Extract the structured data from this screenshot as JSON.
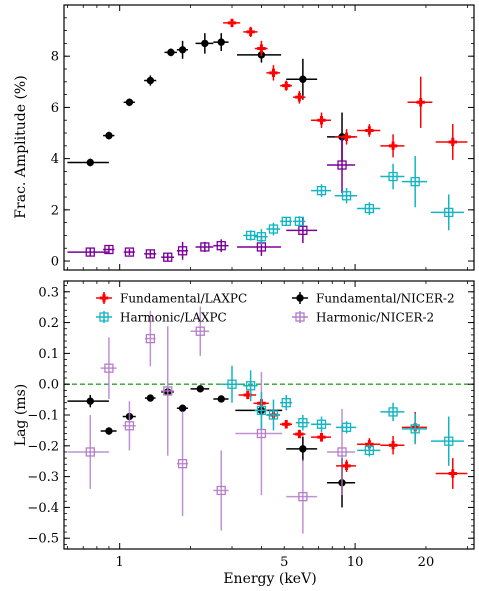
{
  "chart_data": [
    {
      "type": "scatter",
      "panel": "top",
      "ylabel": "Frac. Amplitude (%)",
      "xlabel": "",
      "xscale": "log",
      "xlim": [
        0.58,
        32
      ],
      "ylim": [
        -0.35,
        10
      ],
      "yticks": [
        "0",
        "2",
        "4",
        "6",
        "8"
      ],
      "yticks_values": [
        0,
        2,
        4,
        6,
        8
      ],
      "series": [
        {
          "name": "Fundamental/NICER-2",
          "color": "#000000",
          "marker": "circle",
          "points": [
            {
              "x": 0.75,
              "xerr": [
                0.15,
                0.15
              ],
              "y": 3.85,
              "yerr": 0.15
            },
            {
              "x": 0.9,
              "xerr": [
                0.05,
                0.05
              ],
              "y": 4.9,
              "yerr": 0.15
            },
            {
              "x": 1.1,
              "xerr": [
                0.06,
                0.06
              ],
              "y": 6.2,
              "yerr": 0.15
            },
            {
              "x": 1.35,
              "xerr": [
                0.08,
                0.08
              ],
              "y": 7.05,
              "yerr": 0.2
            },
            {
              "x": 1.65,
              "xerr": [
                0.1,
                0.1
              ],
              "y": 8.15,
              "yerr": 0.15
            },
            {
              "x": 1.85,
              "xerr": [
                0.1,
                0.1
              ],
              "y": 8.25,
              "yerr": 0.35
            },
            {
              "x": 2.3,
              "xerr": [
                0.2,
                0.2
              ],
              "y": 8.5,
              "yerr": 0.4
            },
            {
              "x": 2.7,
              "xerr": [
                0.2,
                0.2
              ],
              "y": 8.55,
              "yerr": 0.35
            },
            {
              "x": 4.0,
              "xerr": [
                0.85,
                0.85
              ],
              "y": 8.05,
              "yerr": 0.3
            },
            {
              "x": 6.0,
              "xerr": [
                0.9,
                0.9
              ],
              "y": 7.1,
              "yerr": 0.8
            },
            {
              "x": 8.8,
              "xerr": [
                1.2,
                1.2
              ],
              "y": 4.85,
              "yerr": 0.95
            }
          ]
        },
        {
          "name": "Harmonic/NICER-2",
          "color": "#7b0099",
          "marker": "square",
          "points": [
            {
              "x": 0.75,
              "xerr": [
                0.15,
                0.15
              ],
              "y": 0.35,
              "yerr": 0.15
            },
            {
              "x": 0.9,
              "xerr": [
                0.05,
                0.05
              ],
              "y": 0.45,
              "yerr": 0.15
            },
            {
              "x": 1.1,
              "xerr": [
                0.06,
                0.06
              ],
              "y": 0.35,
              "yerr": 0.12
            },
            {
              "x": 1.35,
              "xerr": [
                0.08,
                0.08
              ],
              "y": 0.28,
              "yerr": 0.15
            },
            {
              "x": 1.6,
              "xerr": [
                0.1,
                0.1
              ],
              "y": 0.15,
              "yerr": 0.15
            },
            {
              "x": 1.85,
              "xerr": [
                0.1,
                0.1
              ],
              "y": 0.4,
              "yerr": 0.35
            },
            {
              "x": 2.3,
              "xerr": [
                0.2,
                0.2
              ],
              "y": 0.55,
              "yerr": 0.2
            },
            {
              "x": 2.7,
              "xerr": [
                0.2,
                0.2
              ],
              "y": 0.6,
              "yerr": 0.25
            },
            {
              "x": 4.0,
              "xerr": [
                0.85,
                0.85
              ],
              "y": 0.55,
              "yerr": 0.35
            },
            {
              "x": 6.0,
              "xerr": [
                0.9,
                0.9
              ],
              "y": 1.2,
              "yerr": 0.5
            },
            {
              "x": 8.8,
              "xerr": [
                1.2,
                1.2
              ],
              "y": 3.75,
              "yerr": 1.1
            }
          ]
        },
        {
          "name": "Fundamental/LAXPC",
          "color": "#ff0000",
          "marker": "plus",
          "points": [
            {
              "x": 3.0,
              "xerr": [
                0.25,
                0.25
              ],
              "y": 9.3,
              "yerr": 0.15
            },
            {
              "x": 3.6,
              "xerr": [
                0.25,
                0.25
              ],
              "y": 8.95,
              "yerr": 0.2
            },
            {
              "x": 4.0,
              "xerr": [
                0.25,
                0.25
              ],
              "y": 8.3,
              "yerr": 0.3
            },
            {
              "x": 4.5,
              "xerr": [
                0.3,
                0.3
              ],
              "y": 7.35,
              "yerr": 0.3
            },
            {
              "x": 5.1,
              "xerr": [
                0.3,
                0.3
              ],
              "y": 6.85,
              "yerr": 0.2
            },
            {
              "x": 5.8,
              "xerr": [
                0.35,
                0.35
              ],
              "y": 6.4,
              "yerr": 0.25
            },
            {
              "x": 7.2,
              "xerr": [
                0.7,
                0.7
              ],
              "y": 5.5,
              "yerr": 0.3
            },
            {
              "x": 9.2,
              "xerr": [
                1.0,
                1.0
              ],
              "y": 4.85,
              "yerr": 0.3
            },
            {
              "x": 11.5,
              "xerr": [
                1.3,
                1.3
              ],
              "y": 5.1,
              "yerr": 0.25
            },
            {
              "x": 14.5,
              "xerr": [
                1.7,
                1.7
              ],
              "y": 4.5,
              "yerr": 0.45
            },
            {
              "x": 19.0,
              "xerr": [
                2.3,
                2.3
              ],
              "y": 6.2,
              "yerr": 1.0
            },
            {
              "x": 26.0,
              "xerr": [
                4.0,
                4.0
              ],
              "y": 4.65,
              "yerr": 0.7
            }
          ]
        },
        {
          "name": "Harmonic/LAXPC",
          "color": "#14b5c2",
          "marker": "square",
          "points": [
            {
              "x": 3.6,
              "xerr": [
                0.25,
                0.25
              ],
              "y": 1.0,
              "yerr": 0.2
            },
            {
              "x": 4.0,
              "xerr": [
                0.25,
                0.25
              ],
              "y": 0.95,
              "yerr": 0.3
            },
            {
              "x": 4.5,
              "xerr": [
                0.3,
                0.3
              ],
              "y": 1.25,
              "yerr": 0.25
            },
            {
              "x": 5.1,
              "xerr": [
                0.3,
                0.3
              ],
              "y": 1.55,
              "yerr": 0.15
            },
            {
              "x": 5.8,
              "xerr": [
                0.35,
                0.35
              ],
              "y": 1.55,
              "yerr": 0.2
            },
            {
              "x": 7.2,
              "xerr": [
                0.7,
                0.7
              ],
              "y": 2.75,
              "yerr": 0.25
            },
            {
              "x": 9.2,
              "xerr": [
                1.0,
                1.0
              ],
              "y": 2.55,
              "yerr": 0.3
            },
            {
              "x": 11.5,
              "xerr": [
                1.3,
                1.3
              ],
              "y": 2.05,
              "yerr": 0.25
            },
            {
              "x": 14.5,
              "xerr": [
                1.7,
                1.7
              ],
              "y": 3.3,
              "yerr": 0.5
            },
            {
              "x": 18.0,
              "xerr": [
                2.2,
                2.2
              ],
              "y": 3.1,
              "yerr": 1.0
            },
            {
              "x": 25.0,
              "xerr": [
                4.0,
                4.0
              ],
              "y": 1.9,
              "yerr": 0.7
            }
          ]
        }
      ]
    },
    {
      "type": "scatter",
      "panel": "bottom",
      "ylabel": "Lag (ms)",
      "xlabel": "Energy (keV)",
      "xscale": "log",
      "xlim": [
        0.58,
        32
      ],
      "ylim": [
        -0.535,
        0.335
      ],
      "yticks": [
        "0.3",
        "0.2",
        "0.1",
        "0.0",
        "−0.1",
        "−0.2",
        "−0.3",
        "−0.4",
        "−0.5"
      ],
      "yticks_values": [
        0.3,
        0.2,
        0.1,
        0.0,
        -0.1,
        -0.2,
        -0.3,
        -0.4,
        -0.5
      ],
      "xticks": [
        "1",
        "5",
        "10",
        "20"
      ],
      "xticks_values": [
        1,
        5,
        10,
        20
      ],
      "reference_line": {
        "y": 0.0,
        "color": "#2ca02c",
        "style": "dashed"
      },
      "legend": {
        "placement": "top",
        "entries": [
          "Fundamental/LAXPC",
          "Fundamental/NICER-2",
          "Harmonic/LAXPC",
          "Harmonic/NICER-2"
        ]
      },
      "series": [
        {
          "name": "Fundamental/NICER-2",
          "color": "#000000",
          "marker": "circle",
          "points": [
            {
              "x": 0.75,
              "xerr": [
                0.15,
                0.15
              ],
              "y": -0.055,
              "yerr": 0.02
            },
            {
              "x": 0.9,
              "xerr": [
                0.07,
                0.07
              ],
              "y": -0.152,
              "yerr": 0.012
            },
            {
              "x": 1.1,
              "xerr": [
                0.07,
                0.07
              ],
              "y": -0.105,
              "yerr": 0.012
            },
            {
              "x": 1.35,
              "xerr": [
                0.07,
                0.07
              ],
              "y": -0.045,
              "yerr": 0.008
            },
            {
              "x": 1.6,
              "xerr": [
                0.1,
                0.1
              ],
              "y": -0.025,
              "yerr": 0.008
            },
            {
              "x": 1.85,
              "xerr": [
                0.1,
                0.1
              ],
              "y": -0.078,
              "yerr": 0.01
            },
            {
              "x": 2.2,
              "xerr": [
                0.2,
                0.2
              ],
              "y": -0.015,
              "yerr": 0.01
            },
            {
              "x": 2.7,
              "xerr": [
                0.2,
                0.2
              ],
              "y": -0.048,
              "yerr": 0.01
            },
            {
              "x": 4.0,
              "xerr": [
                0.9,
                0.9
              ],
              "y": -0.085,
              "yerr": 0.02
            },
            {
              "x": 6.0,
              "xerr": [
                0.9,
                0.9
              ],
              "y": -0.21,
              "yerr": 0.04
            },
            {
              "x": 8.8,
              "xerr": [
                1.2,
                1.2
              ],
              "y": -0.32,
              "yerr": 0.08
            }
          ]
        },
        {
          "name": "Harmonic/NICER-2",
          "color": "#b57ec9",
          "marker": "square",
          "points": [
            {
              "x": 0.75,
              "xerr": [
                0.15,
                0.15
              ],
              "y": -0.22,
              "yerr": 0.12
            },
            {
              "x": 0.9,
              "xerr": [
                0.07,
                0.07
              ],
              "y": 0.052,
              "yerr": 0.1
            },
            {
              "x": 1.1,
              "xerr": [
                0.07,
                0.07
              ],
              "y": -0.135,
              "yerr": 0.08
            },
            {
              "x": 1.35,
              "xerr": [
                0.07,
                0.07
              ],
              "y": 0.148,
              "yerr": 0.09
            },
            {
              "x": 1.6,
              "xerr": [
                0.1,
                0.1
              ],
              "y": -0.022,
              "yerr": 0.21
            },
            {
              "x": 1.85,
              "xerr": [
                0.1,
                0.1
              ],
              "y": -0.258,
              "yerr": 0.17
            },
            {
              "x": 2.2,
              "xerr": [
                0.2,
                0.2
              ],
              "y": 0.172,
              "yerr": 0.08
            },
            {
              "x": 2.7,
              "xerr": [
                0.2,
                0.2
              ],
              "y": -0.345,
              "yerr": 0.13
            },
            {
              "x": 4.0,
              "xerr": [
                0.9,
                0.9
              ],
              "y": -0.16,
              "yerr": 0.2
            },
            {
              "x": 6.0,
              "xerr": [
                0.9,
                0.9
              ],
              "y": -0.365,
              "yerr": 0.12
            },
            {
              "x": 8.8,
              "xerr": [
                1.2,
                1.2
              ],
              "y": -0.22,
              "yerr": 0.14
            }
          ]
        },
        {
          "name": "Fundamental/LAXPC",
          "color": "#ff0000",
          "marker": "plus",
          "points": [
            {
              "x": 3.5,
              "xerr": [
                0.3,
                0.3
              ],
              "y": -0.035,
              "yerr": 0.01
            },
            {
              "x": 4.0,
              "xerr": [
                0.3,
                0.3
              ],
              "y": -0.062,
              "yerr": 0.015
            },
            {
              "x": 4.5,
              "xerr": [
                0.3,
                0.3
              ],
              "y": -0.1,
              "yerr": 0.015
            },
            {
              "x": 5.1,
              "xerr": [
                0.3,
                0.3
              ],
              "y": -0.13,
              "yerr": 0.008
            },
            {
              "x": 5.8,
              "xerr": [
                0.35,
                0.35
              ],
              "y": -0.162,
              "yerr": 0.01
            },
            {
              "x": 7.2,
              "xerr": [
                0.7,
                0.7
              ],
              "y": -0.172,
              "yerr": 0.015
            },
            {
              "x": 9.2,
              "xerr": [
                0.9,
                0.9
              ],
              "y": -0.265,
              "yerr": 0.02
            },
            {
              "x": 11.5,
              "xerr": [
                1.3,
                1.3
              ],
              "y": -0.195,
              "yerr": 0.02
            },
            {
              "x": 14.5,
              "xerr": [
                1.7,
                1.7
              ],
              "y": -0.198,
              "yerr": 0.03
            },
            {
              "x": 18.0,
              "xerr": [
                2.2,
                2.2
              ],
              "y": -0.14,
              "yerr": 0.05
            },
            {
              "x": 26.0,
              "xerr": [
                4.0,
                4.0
              ],
              "y": -0.29,
              "yerr": 0.05
            }
          ]
        },
        {
          "name": "Harmonic/LAXPC",
          "color": "#14b5c2",
          "marker": "square",
          "points": [
            {
              "x": 3.0,
              "xerr": [
                0.3,
                0.3
              ],
              "y": 0.0,
              "yerr": 0.06
            },
            {
              "x": 3.6,
              "xerr": [
                0.25,
                0.25
              ],
              "y": -0.005,
              "yerr": 0.05
            },
            {
              "x": 4.0,
              "xerr": [
                0.25,
                0.25
              ],
              "y": -0.085,
              "yerr": 0.06
            },
            {
              "x": 4.5,
              "xerr": [
                0.3,
                0.3
              ],
              "y": -0.1,
              "yerr": 0.05
            },
            {
              "x": 5.1,
              "xerr": [
                0.3,
                0.3
              ],
              "y": -0.06,
              "yerr": 0.025
            },
            {
              "x": 6.0,
              "xerr": [
                0.4,
                0.4
              ],
              "y": -0.125,
              "yerr": 0.025
            },
            {
              "x": 7.2,
              "xerr": [
                0.7,
                0.7
              ],
              "y": -0.13,
              "yerr": 0.025
            },
            {
              "x": 9.2,
              "xerr": [
                0.9,
                0.9
              ],
              "y": -0.14,
              "yerr": 0.02
            },
            {
              "x": 11.5,
              "xerr": [
                1.3,
                1.3
              ],
              "y": -0.215,
              "yerr": 0.02
            },
            {
              "x": 14.5,
              "xerr": [
                1.7,
                1.7
              ],
              "y": -0.09,
              "yerr": 0.03
            },
            {
              "x": 18.0,
              "xerr": [
                2.2,
                2.2
              ],
              "y": -0.145,
              "yerr": 0.05
            },
            {
              "x": 25.0,
              "xerr": [
                4.0,
                4.0
              ],
              "y": -0.185,
              "yerr": 0.08
            }
          ]
        }
      ]
    }
  ]
}
